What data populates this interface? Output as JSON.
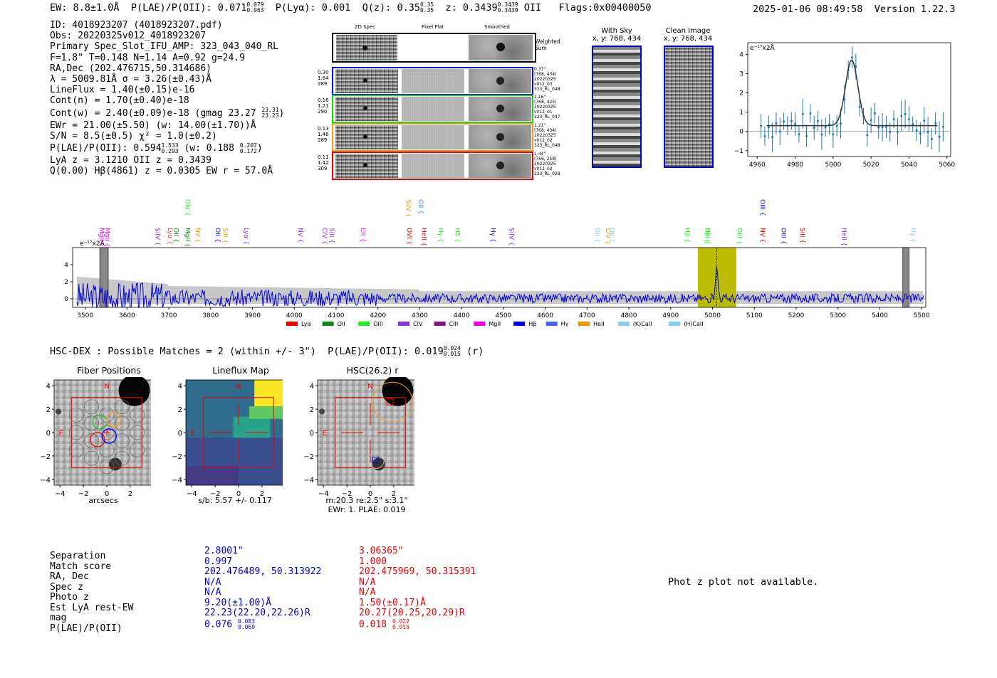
{
  "header": {
    "ew": "EW: 8.8±1.0Å",
    "plae_label": "P(LAE)/P(OII): 0.071",
    "plae_hi": "0.079",
    "plae_lo": "0.063",
    "plya": "P(Lyα): 0.001",
    "qz_label": "Q(z): 0.35",
    "qz_hi": "0.35",
    "qz_lo": "0.35",
    "z_label": "z: 0.3439",
    "z_hi": "0.3439",
    "z_lo": "0.3439",
    "z_line": "OII",
    "flags": "Flags:0x00400050",
    "timestamp": "2025-01-06 08:49:58",
    "version": "Version 1.22.3"
  },
  "info": {
    "id": "ID: 4018923207 (4018923207.pdf)",
    "obs": "Obs: 20220325v012_4018923207",
    "primary": "Primary Spec_Slot_IFU_AMP: 323_043_040_RL",
    "fparams": "F=1.8\"  T=0.148  N=1.14  A=0.92  g=24.9",
    "radec": "RA,Dec (202.476715,50.314686)",
    "lambda": "λ = 5009.81Å  σ = 3.26(±0.43)Å",
    "lineflux": "LineFlux = 1.40(±0.15)e-16",
    "contn": "Cont(n) = 1.70(±0.40)e-18",
    "contw": "Cont(w) = 2.40(±0.09)e-18 (gmag 23.27",
    "contw_hi": "23.31",
    "contw_lo": "23.23",
    "ewr": "EWr = 21.00(±5.50) (w: 14.00(±1.70))Å",
    "sn": "S/N = 8.5(±0.5)  χ² = 1.0(±0.2)",
    "plae": "P(LAE)/P(OII): 0.594",
    "plae_hi": "1.533",
    "plae_lo": "0.293",
    "plae_w": "(w: 0.188",
    "plae_w_hi": "0.207",
    "plae_w_lo": "0.172",
    "lya": "LyA z = 3.1210  OII z = 0.3439",
    "q": "Q(0.00) Hβ(4861) z = 0.0305  EW r = 57.0Å"
  },
  "cutouts": {
    "col_titles": [
      "2D Spec",
      "Pixel Flat",
      "Smoothed"
    ],
    "weighted_sum": "Weighted Sum",
    "rows": [
      {
        "l1": "0.30",
        "l2": "1.64",
        "l3": "289",
        "r1": "0.37\"",
        "r2": "(768, 434)",
        "r3": "20220325",
        "r4": "v012_03",
        "r5": "323_RL_048",
        "color": "#0000ee"
      },
      {
        "l1": "0.16",
        "l2": "1.21",
        "l3": "290",
        "r1": "1.16\"",
        "r2": "(768, 425)",
        "r3": "20220325",
        "r4": "v012_01",
        "r5": "323_RL_047",
        "color": "#22cc22"
      },
      {
        "l1": "0.13",
        "l2": "1.46",
        "l3": "289",
        "r1": "1.21\"",
        "r2": "(768, 434)",
        "r3": "20220325",
        "r4": "v012_02",
        "r5": "323_RL_048",
        "color": "#f0a020"
      },
      {
        "l1": "0.11",
        "l2": "1.42",
        "l3": "309",
        "r1": "1.44\"",
        "r2": "(766, 258)",
        "r3": "20220325",
        "r4": "v012_02",
        "r5": "323_RL_028",
        "color": "#ee0000"
      }
    ],
    "with_sky_title": "With Sky",
    "with_sky_xy": "x, y: 768, 434",
    "clean_title": "Clean Image",
    "clean_xy": "x, y: 768, 434"
  },
  "zoom_plot": {
    "ylabel": "e⁻¹⁷x2Å",
    "xticks": [
      "4960",
      "4980",
      "5000",
      "5020",
      "5040",
      "5060"
    ],
    "yticks": [
      "4",
      "3",
      "2",
      "1",
      "0",
      "−1"
    ]
  },
  "chart_data": {
    "type": "line",
    "title": "",
    "ylabel": "e⁻¹⁷x2Å",
    "xlabel": "",
    "xlim": [
      3470,
      5510
    ],
    "ylim": [
      -1,
      6
    ],
    "xticks": [
      "3500",
      "3600",
      "3700",
      "3800",
      "3900",
      "4000",
      "4100",
      "4200",
      "4300",
      "4400",
      "4500",
      "4600",
      "4700",
      "4800",
      "4900",
      "5000",
      "5100",
      "5200",
      "5300",
      "5400",
      "5500"
    ],
    "yticks": [
      "4",
      "2",
      "0"
    ],
    "highlight_range": [
      4965,
      5057
    ],
    "emission_line": 5009.81,
    "masked_regions": [
      [
        3535,
        3555
      ],
      [
        5455,
        5470
      ]
    ],
    "line_labels": [
      {
        "name": "MgII",
        "x": 3535,
        "color": "#ee00ee"
      },
      {
        "name": "MgII",
        "x": 3548,
        "color": "#ee00ee"
      },
      {
        "name": "SiIV",
        "x": 3668,
        "color": "#8833dd"
      },
      {
        "name": "Lyα",
        "x": 3698,
        "color": "#ee4444"
      },
      {
        "name": "OII",
        "x": 3713,
        "color": "#118811"
      },
      {
        "name": "MgII",
        "x": 3740,
        "color": "#118811"
      },
      {
        "name": "OIII",
        "x": 3740,
        "color": "#22ee22"
      },
      {
        "name": "NV",
        "x": 3765,
        "color": "#ee9900"
      },
      {
        "name": "OII",
        "x": 3812,
        "color": "#1111ee"
      },
      {
        "name": "SiII",
        "x": 3830,
        "color": "#ee9900"
      },
      {
        "name": "Lyα",
        "x": 3880,
        "color": "#8833dd"
      },
      {
        "name": "NV",
        "x": 4010,
        "color": "#8833dd"
      },
      {
        "name": "CIV",
        "x": 4068,
        "color": "#8833dd"
      },
      {
        "name": "SiII",
        "x": 4085,
        "color": "#8833dd"
      },
      {
        "name": "CII",
        "x": 4160,
        "color": "#ee00ee"
      },
      {
        "name": "OVI",
        "x": 4270,
        "color": "#ee0000"
      },
      {
        "name": "SiIV",
        "x": 4268,
        "color": "#ee9900"
      },
      {
        "name": "OII",
        "x": 4298,
        "color": "#4488ee"
      },
      {
        "name": "HeII",
        "x": 4305,
        "color": "#ee0000"
      },
      {
        "name": "Hγ",
        "x": 4345,
        "color": "#22ee22"
      },
      {
        "name": "Hδ",
        "x": 4385,
        "color": "#22ee22"
      },
      {
        "name": "Hγ",
        "x": 4470,
        "color": "#1111ee"
      },
      {
        "name": "SiIV",
        "x": 4515,
        "color": "#8833dd"
      },
      {
        "name": "OII",
        "x": 4720,
        "color": "#88ccee"
      },
      {
        "name": "CIV",
        "x": 4745,
        "color": "#ee9900"
      },
      {
        "name": "OII",
        "x": 4755,
        "color": "#88ccee"
      },
      {
        "name": "Hβ",
        "x": 4935,
        "color": "#22ee22"
      },
      {
        "name": "Hβ",
        "x": 4983,
        "color": "#22ee22"
      },
      {
        "name": "OIII",
        "x": 4983,
        "color": "#22ee22"
      },
      {
        "name": "OIII",
        "x": 5060,
        "color": "#22ee22"
      },
      {
        "name": "NV",
        "x": 5115,
        "color": "#ee0000"
      },
      {
        "name": "OIII",
        "x": 5115,
        "color": "#1111ee"
      },
      {
        "name": "OIII",
        "x": 5165,
        "color": "#1111ee"
      },
      {
        "name": "SiII",
        "x": 5210,
        "color": "#ee0000"
      },
      {
        "name": "HeII",
        "x": 5310,
        "color": "#8833dd"
      },
      {
        "name": "Hγ",
        "x": 5475,
        "color": "#88ccee"
      }
    ],
    "legend": [
      {
        "name": "Lyα",
        "color": "#ee0000"
      },
      {
        "name": "OII",
        "color": "#118811"
      },
      {
        "name": "OIII",
        "color": "#22ee22"
      },
      {
        "name": "CIV",
        "color": "#8833dd"
      },
      {
        "name": "CIII",
        "color": "#881188"
      },
      {
        "name": "MgII",
        "color": "#ee00ee"
      },
      {
        "name": "Hβ",
        "color": "#0000ee"
      },
      {
        "name": "Hγ",
        "color": "#4466ee"
      },
      {
        "name": "HeII",
        "color": "#ee9900"
      },
      {
        "name": "(K)CaII",
        "color": "#88ccee"
      },
      {
        "name": "(H)CaII",
        "color": "#88ccee"
      }
    ]
  },
  "hsc": {
    "title": "HSC-DEX : Possible Matches = 2 (within +/- 3\")",
    "plae": "P(LAE)/P(OII): 0.019",
    "plae_hi": "0.024",
    "plae_lo": "0.015",
    "band": "(r)"
  },
  "maps": [
    {
      "title": "Fiber Positions",
      "xlabel": "arcsecs",
      "extra1": "",
      "extra2": ""
    },
    {
      "title": "Lineflux Map",
      "xlabel": "s/b: 5.57 +/- 0.117",
      "extra1": "",
      "extra2": ""
    },
    {
      "title": "HSC(26.2) r",
      "xlabel": "m:20.3  re:2.5\"  s:3.1\"",
      "extra1": "EWr: 1. PLAE: 0.019",
      "extra2": ""
    }
  ],
  "map_ticks": {
    "y": [
      "4",
      "2",
      "0",
      "−2",
      "−4"
    ],
    "x": [
      "−4",
      "−2",
      "0",
      "2",
      "4"
    ],
    "n": "N",
    "e": "E"
  },
  "match_table": {
    "labels": [
      "Separation",
      "Match score",
      "RA, Dec",
      "Spec z",
      "Photo z",
      "Est LyA rest-EW",
      "mag",
      "P(LAE)/P(OII)"
    ],
    "col1": [
      "2.8001\"",
      "0.997",
      "202.476489, 50.313922",
      "N/A",
      "N/A",
      "9.20(±1.00)Å",
      "22.23(22.20,22.26)R",
      "0.076"
    ],
    "col1_plae_hi": "0.083",
    "col1_plae_lo": "0.069",
    "col2": [
      "3.06365\"",
      "1.000",
      "202.475969, 50.315391",
      "N/A",
      "N/A",
      "1.50(±0.17)Å",
      "20.27(20.25,20.29)R",
      "0.018"
    ],
    "col2_plae_hi": "0.022",
    "col2_plae_lo": "0.015"
  },
  "photz_note": "Phot z plot not available."
}
